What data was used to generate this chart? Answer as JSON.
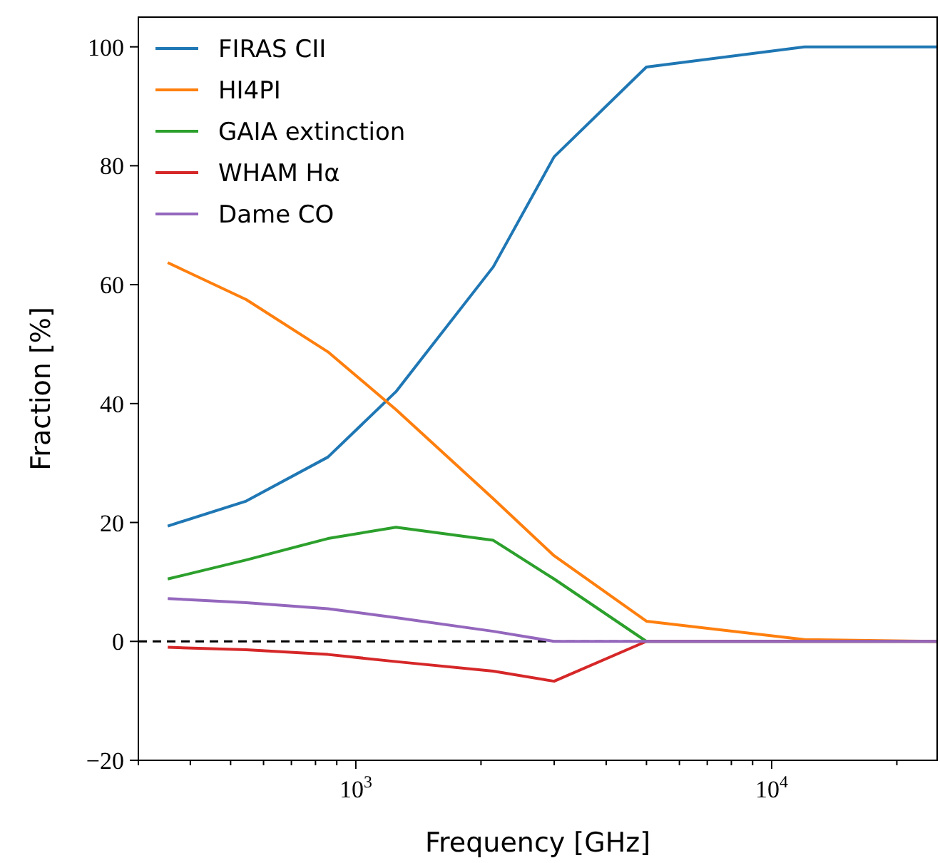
{
  "chart_data": {
    "type": "line",
    "xlabel": "Frequency [GHz]",
    "ylabel": "Fraction [%]",
    "log": "x",
    "x": [
      353,
      545,
      857,
      1249,
      2141,
      2998,
      4997,
      11992,
      24983
    ],
    "xlim": [
      300,
      25000
    ],
    "xticks": [
      {
        "value": 300,
        "label": null
      },
      {
        "value": 400,
        "label": null
      },
      {
        "value": 500,
        "label": null
      },
      {
        "value": 600,
        "label": null
      },
      {
        "value": 700,
        "label": null
      },
      {
        "value": 800,
        "label": null
      },
      {
        "value": 900,
        "label": null
      },
      {
        "value": 1000,
        "label": "10$^{3}$"
      },
      {
        "value": 2000,
        "label": null
      },
      {
        "value": 3000,
        "label": null
      },
      {
        "value": 4000,
        "label": null
      },
      {
        "value": 5000,
        "label": null
      },
      {
        "value": 6000,
        "label": null
      },
      {
        "value": 7000,
        "label": null
      },
      {
        "value": 8000,
        "label": null
      },
      {
        "value": 9000,
        "label": null
      },
      {
        "value": 10000,
        "label": "10$^{4}$"
      },
      {
        "value": 20000,
        "label": null
      }
    ],
    "ylim": [
      -20,
      105
    ],
    "yticks": [
      {
        "value": -20,
        "label": "−20"
      },
      0,
      20,
      40,
      60,
      80,
      100
    ],
    "series": [
      {
        "name": "FIRAS CII",
        "color": "#1f77b4",
        "values": [
          19.4,
          23.6,
          31,
          42,
          63,
          81.5,
          96.6,
          100,
          100
        ]
      },
      {
        "name": "HI4PI",
        "color": "#ff7f0e",
        "values": [
          63.7,
          57.5,
          48.7,
          39,
          24,
          14.4,
          3.4,
          0.3,
          0
        ]
      },
      {
        "name": "GAIA extinction",
        "color": "#2ca02c",
        "values": [
          10.5,
          13.7,
          17.3,
          19.2,
          17,
          10.5,
          0,
          0,
          0
        ]
      },
      {
        "name": "WHAM Hα",
        "color": "#d62728",
        "values": [
          -1,
          -1.4,
          -2.2,
          -3.4,
          -5,
          -6.7,
          0,
          0,
          0
        ]
      },
      {
        "name": "Dame CO",
        "color": "#9467bd",
        "values": [
          7.2,
          6.5,
          5.5,
          4,
          1.7,
          0,
          0,
          0,
          0
        ]
      }
    ],
    "ref_lines": [
      {
        "axis": "y",
        "value": 0,
        "color": "#000000",
        "line_style": "dashed"
      }
    ],
    "legend": "top left",
    "grid": false,
    "marker": "none",
    "line_style": "solid"
  }
}
